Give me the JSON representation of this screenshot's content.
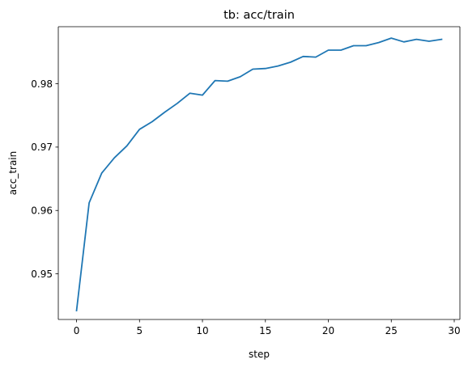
{
  "chart_data": {
    "type": "line",
    "title": "tb: acc/train",
    "xlabel": "step",
    "ylabel": "acc_train",
    "xlim": [
      -1.45,
      30.45
    ],
    "ylim": [
      0.9428,
      0.989
    ],
    "xticks": [
      0,
      5,
      10,
      15,
      20,
      25,
      30
    ],
    "xtick_labels": [
      "0",
      "5",
      "10",
      "15",
      "20",
      "25",
      "30"
    ],
    "yticks": [
      0.95,
      0.96,
      0.97,
      0.98
    ],
    "ytick_labels": [
      "0.95",
      "0.96",
      "0.97",
      "0.98"
    ],
    "grid": false,
    "series": [
      {
        "color": "#1f77b4",
        "x": [
          0,
          1,
          2,
          3,
          4,
          5,
          6,
          7,
          8,
          9,
          10,
          11,
          12,
          13,
          14,
          15,
          16,
          17,
          18,
          19,
          20,
          21,
          22,
          23,
          24,
          25,
          26,
          27,
          28,
          29
        ],
        "y": [
          0.9442,
          0.9612,
          0.9659,
          0.9683,
          0.9702,
          0.9728,
          0.974,
          0.9755,
          0.9769,
          0.9785,
          0.9782,
          0.9805,
          0.9804,
          0.9811,
          0.9823,
          0.9824,
          0.9828,
          0.9834,
          0.9843,
          0.9842,
          0.9853,
          0.9853,
          0.986,
          0.986,
          0.9865,
          0.9872,
          0.9866,
          0.987,
          0.9867,
          0.987
        ]
      }
    ]
  }
}
